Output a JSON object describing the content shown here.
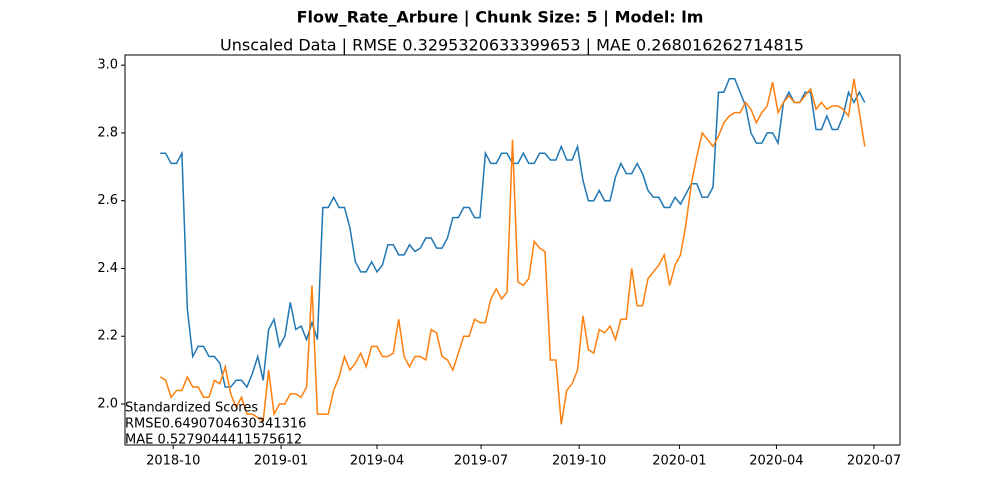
{
  "chart_data": {
    "type": "line",
    "title": "Flow_Rate_Arbure | Chunk Size: 5 | Model: lm",
    "subtitle": "Unscaled Data | RMSE 0.3295320633399653 | MAE 0.268016262714815",
    "annotations": [
      "Standardized Scores",
      "RMSE0.6490704630341316",
      "MAE 0.5279044411575612"
    ],
    "xlim": [
      -6.5,
      136.5
    ],
    "xticks": [
      {
        "value": 2.4,
        "label": "2018-10"
      },
      {
        "value": 22.3,
        "label": "2019-01"
      },
      {
        "value": 40.0,
        "label": "2019-04"
      },
      {
        "value": 59.2,
        "label": "2019-07"
      },
      {
        "value": 77.3,
        "label": "2019-10"
      },
      {
        "value": 95.8,
        "label": "2020-01"
      },
      {
        "value": 113.7,
        "label": "2020-04"
      },
      {
        "value": 131.7,
        "label": "2020-07"
      }
    ],
    "ylim": [
      1.879,
      3.03
    ],
    "yticks": [
      {
        "value": 2,
        "label": "2.0"
      },
      2.2,
      2.4,
      2.6,
      2.8,
      {
        "value": 3,
        "label": "3.0"
      }
    ],
    "grid": false,
    "series": [
      {
        "color": "#1f77b4",
        "values": [
          2.74,
          2.74,
          2.71,
          2.71,
          2.74,
          2.28,
          2.14,
          2.17,
          2.17,
          2.14,
          2.14,
          2.12,
          2.05,
          2.05,
          2.07,
          2.07,
          2.05,
          2.09,
          2.14,
          2.07,
          2.22,
          2.25,
          2.17,
          2.2,
          2.3,
          2.22,
          2.23,
          2.19,
          2.24,
          2.19,
          2.58,
          2.58,
          2.61,
          2.58,
          2.58,
          2.52,
          2.42,
          2.39,
          2.39,
          2.42,
          2.39,
          2.41,
          2.47,
          2.47,
          2.44,
          2.44,
          2.47,
          2.45,
          2.46,
          2.49,
          2.49,
          2.46,
          2.46,
          2.49,
          2.55,
          2.55,
          2.58,
          2.58,
          2.55,
          2.55,
          2.74,
          2.71,
          2.71,
          2.74,
          2.74,
          2.71,
          2.71,
          2.74,
          2.71,
          2.71,
          2.74,
          2.74,
          2.72,
          2.72,
          2.76,
          2.72,
          2.72,
          2.76,
          2.66,
          2.6,
          2.6,
          2.63,
          2.6,
          2.6,
          2.67,
          2.71,
          2.68,
          2.68,
          2.71,
          2.68,
          2.63,
          2.61,
          2.61,
          2.58,
          2.58,
          2.61,
          2.59,
          2.62,
          2.65,
          2.65,
          2.61,
          2.61,
          2.64,
          2.92,
          2.92,
          2.96,
          2.96,
          2.92,
          2.88,
          2.8,
          2.77,
          2.77,
          2.8,
          2.8,
          2.77,
          2.89,
          2.92,
          2.89,
          2.89,
          2.92,
          2.92,
          2.81,
          2.81,
          2.85,
          2.81,
          2.81,
          2.85,
          2.92,
          2.89,
          2.92,
          2.89
        ]
      },
      {
        "color": "#ff7f0e",
        "values": [
          2.08,
          2.07,
          2.02,
          2.04,
          2.04,
          2.08,
          2.05,
          2.05,
          2.02,
          2.02,
          2.07,
          2.06,
          2.11,
          2.03,
          1.99,
          2.02,
          1.97,
          1.97,
          1.96,
          1.95,
          2.1,
          1.97,
          2.0,
          2.0,
          2.03,
          2.03,
          2.02,
          2.05,
          2.35,
          1.97,
          1.97,
          1.97,
          2.04,
          2.08,
          2.14,
          2.1,
          2.12,
          2.15,
          2.11,
          2.17,
          2.17,
          2.14,
          2.14,
          2.15,
          2.25,
          2.14,
          2.11,
          2.14,
          2.14,
          2.13,
          2.22,
          2.21,
          2.14,
          2.13,
          2.1,
          2.15,
          2.2,
          2.2,
          2.25,
          2.24,
          2.24,
          2.31,
          2.34,
          2.31,
          2.33,
          2.78,
          2.36,
          2.35,
          2.37,
          2.48,
          2.46,
          2.45,
          2.13,
          2.13,
          1.94,
          2.04,
          2.06,
          2.1,
          2.26,
          2.16,
          2.15,
          2.22,
          2.21,
          2.23,
          2.19,
          2.25,
          2.25,
          2.4,
          2.29,
          2.29,
          2.37,
          2.39,
          2.41,
          2.44,
          2.35,
          2.41,
          2.44,
          2.53,
          2.65,
          2.73,
          2.8,
          2.78,
          2.76,
          2.79,
          2.83,
          2.85,
          2.86,
          2.86,
          2.89,
          2.87,
          2.83,
          2.86,
          2.88,
          2.95,
          2.86,
          2.89,
          2.91,
          2.89,
          2.89,
          2.91,
          2.93,
          2.87,
          2.89,
          2.87,
          2.88,
          2.88,
          2.87,
          2.85,
          2.96,
          2.86,
          2.76
        ]
      }
    ]
  }
}
